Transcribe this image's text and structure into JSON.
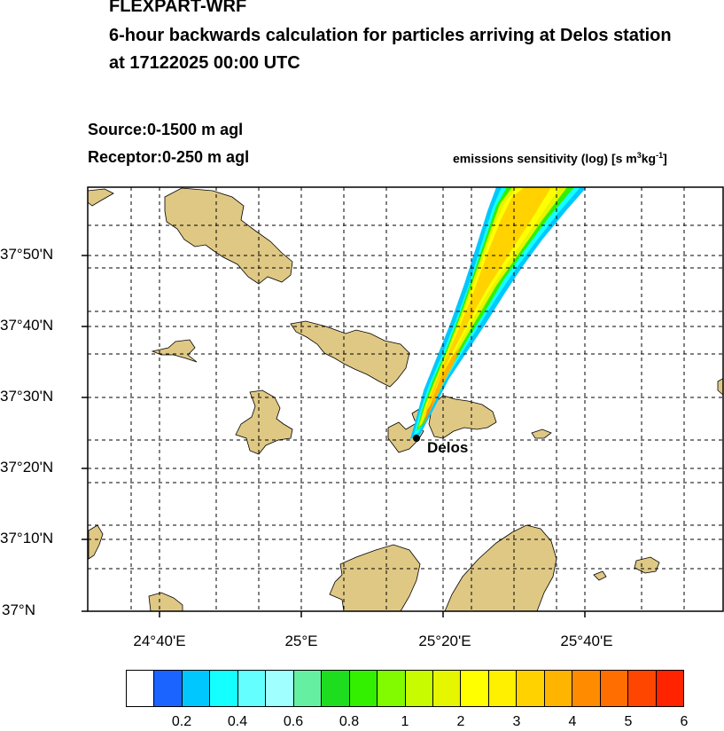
{
  "header": {
    "model": "FLEXPART-WRF",
    "subtitle": "6-hour backwards calculation for particles arriving at Delos station",
    "datetime": "at 17122025 00:00 UTC",
    "source": "Source:0-1500 m agl",
    "receptor": "Receptor:0-250 m agl",
    "units_main": "emissions sensitivity (log) [s m",
    "units_sup1": "3",
    "units_mid": "kg",
    "units_sup2": "-1",
    "units_end": "]"
  },
  "map": {
    "station_label": "Delos",
    "land_color": "#dfc884",
    "lat_labels": [
      "37°50'N",
      "37°40'N",
      "37°30'N",
      "37°20'N",
      "37°10'N",
      "37°N"
    ],
    "lon_labels": [
      "24°40'E",
      "25°E",
      "25°20'E",
      "25°40'E"
    ]
  },
  "colorbar": {
    "colors": [
      "#ffffff",
      "#1c64ff",
      "#00c8ff",
      "#14ffff",
      "#64ffff",
      "#a0ffff",
      "#64f0a0",
      "#1edc1e",
      "#32f000",
      "#82fa00",
      "#c8fa00",
      "#e6f500",
      "#ffff00",
      "#fff000",
      "#ffd200",
      "#ffb400",
      "#ff8c00",
      "#ff6e00",
      "#ff4600",
      "#ff2300"
    ],
    "labels": [
      "0.2",
      "0.4",
      "0.6",
      "0.8",
      "1",
      "2",
      "3",
      "4",
      "5",
      "6"
    ]
  }
}
